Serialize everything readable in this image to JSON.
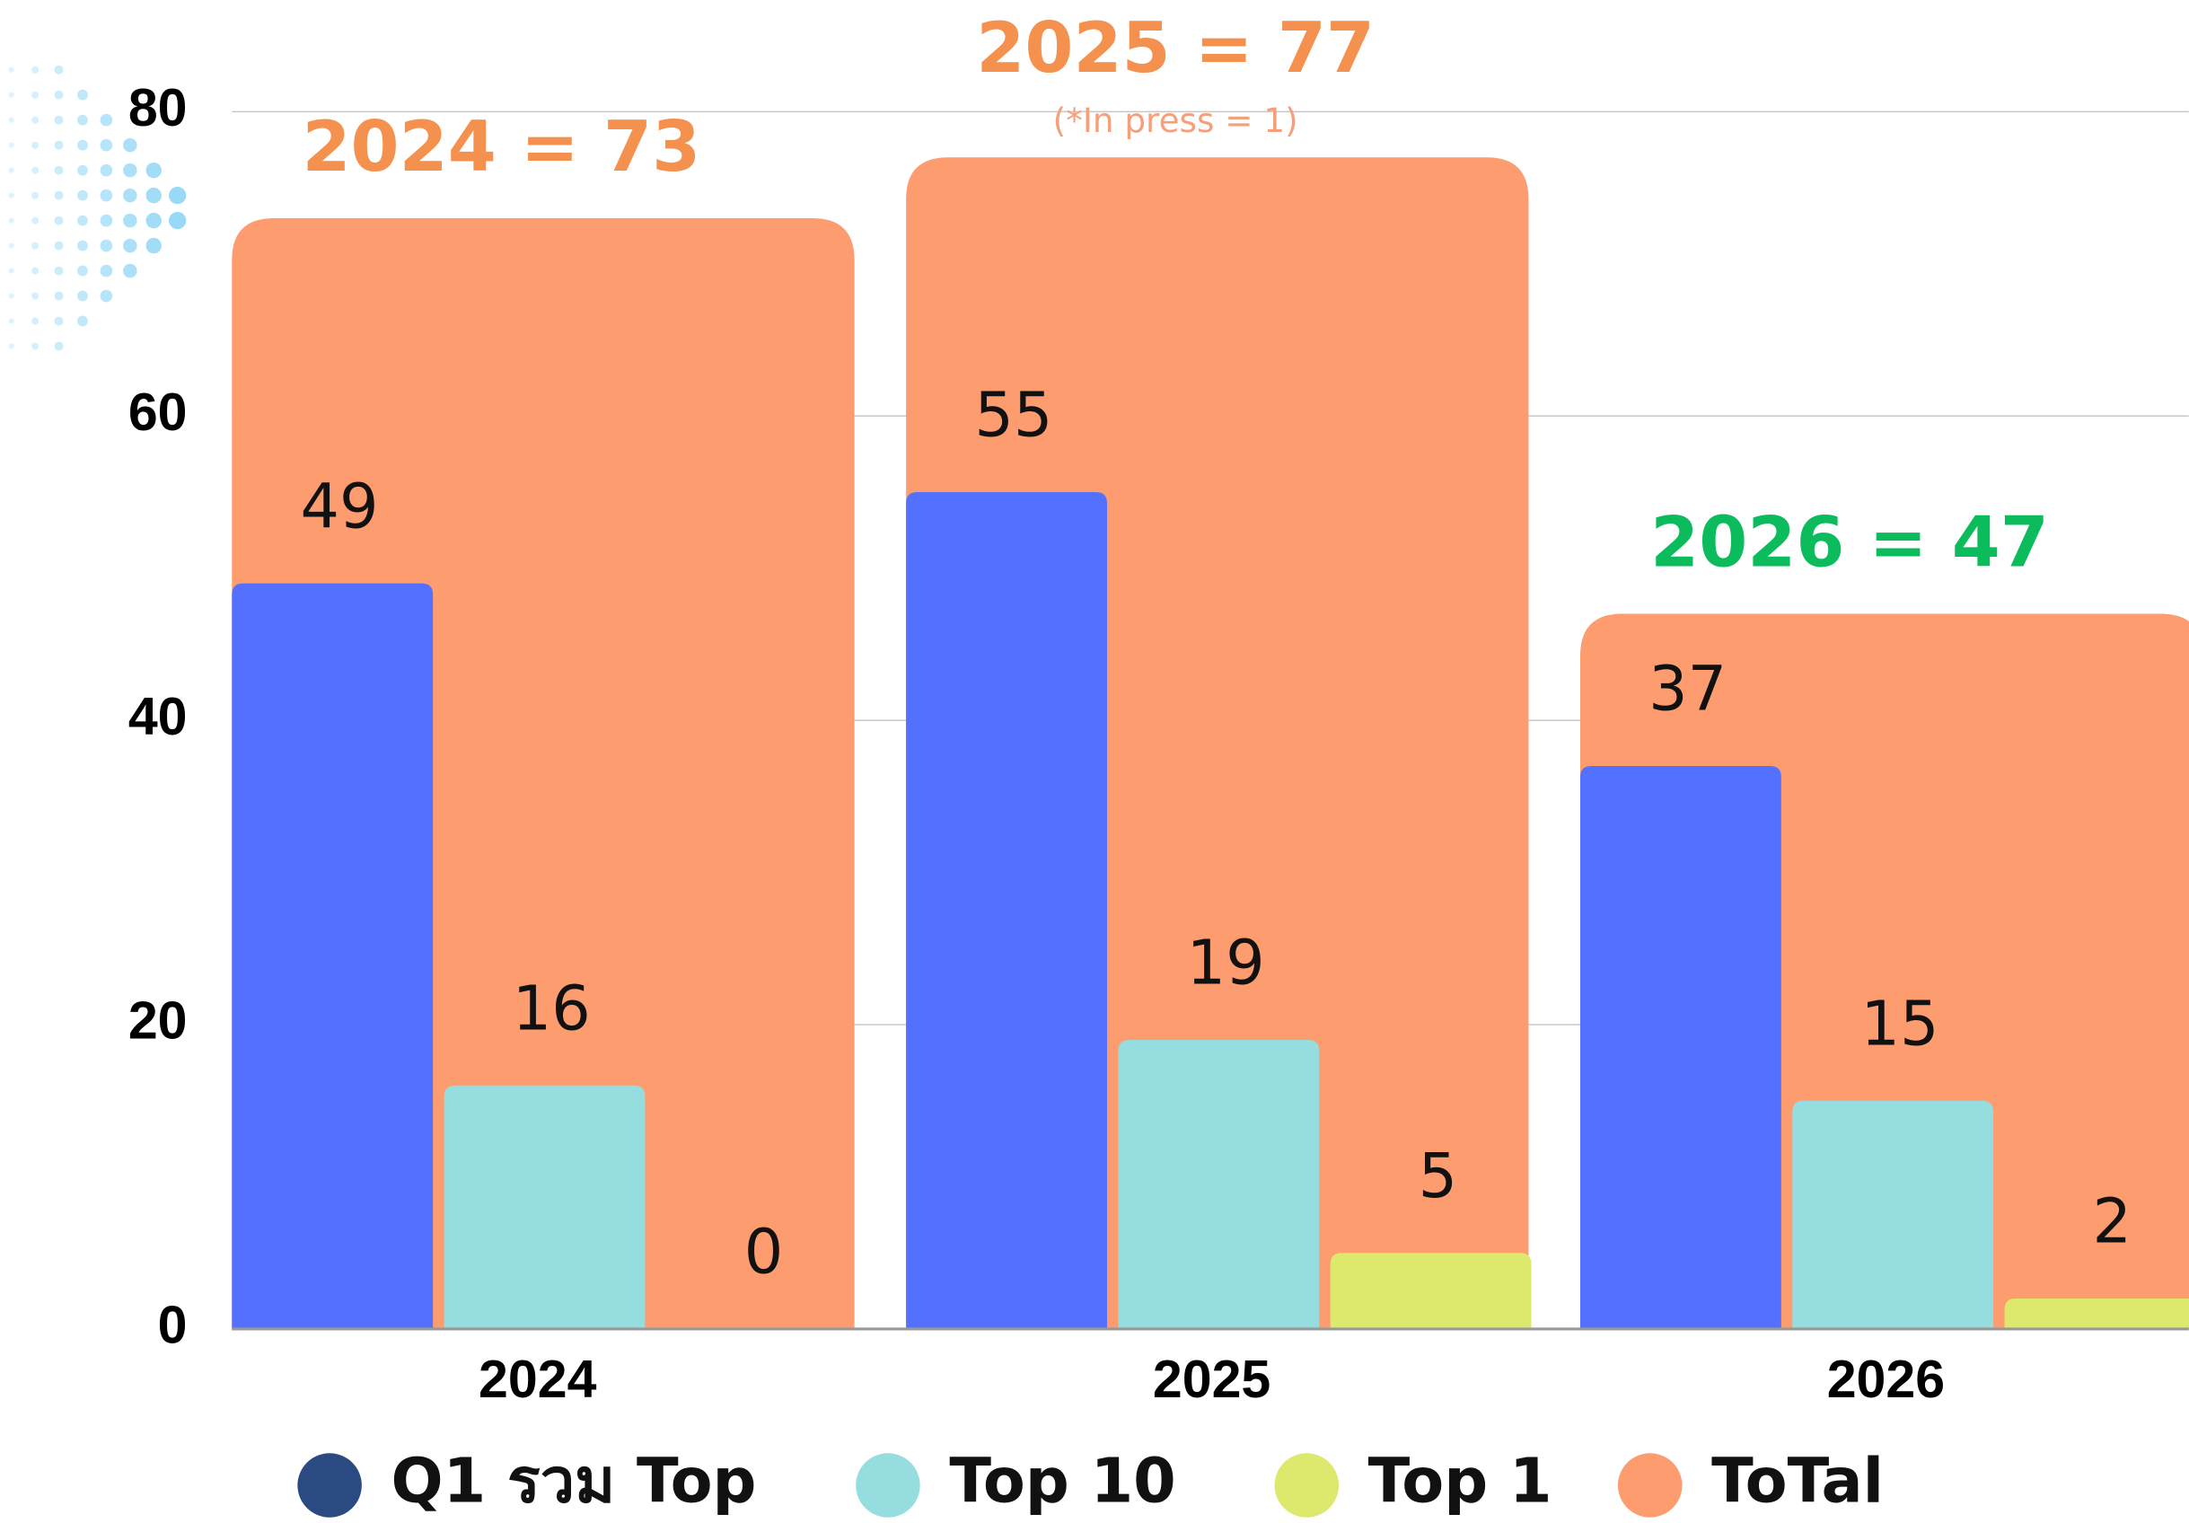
{
  "chart_data": {
    "type": "bar",
    "categories": [
      "2024",
      "2025",
      "2026"
    ],
    "series": [
      {
        "name": "ToTal",
        "color": "#fd9c6f",
        "legend_color": "#fd9c6f",
        "values": [
          73,
          77,
          47
        ],
        "value_labels": [
          "2024 = 73",
          "2025 = 77",
          "2026 = 47"
        ],
        "label_colors": [
          "#f5914f",
          "#f5914f",
          "#0cbc5c"
        ],
        "background": true
      },
      {
        "name": "Q1 รวม Top",
        "color": "#5470fe",
        "legend_color": "#2c4a82",
        "values": [
          49,
          55,
          37
        ]
      },
      {
        "name": "Top 10",
        "color": "#96dde0",
        "legend_color": "#96dde0",
        "values": [
          16,
          19,
          15
        ]
      },
      {
        "name": "Top 1",
        "color": "#dce96c",
        "legend_color": "#dce96c",
        "values": [
          0,
          5,
          2
        ]
      }
    ],
    "annotation": "(*In press = 1)",
    "ylim": [
      0,
      80
    ],
    "yticks": [
      0,
      20,
      40,
      60,
      80
    ],
    "grid": true
  }
}
